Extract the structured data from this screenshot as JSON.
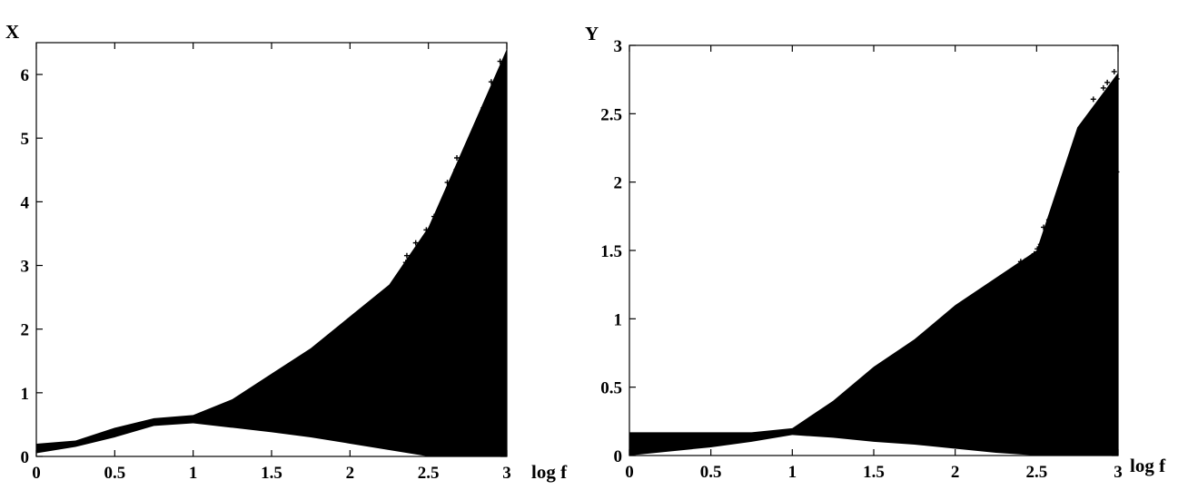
{
  "chart_data": [
    {
      "type": "scatter",
      "title": "",
      "xlabel": "log f",
      "ylabel": "X",
      "xlim": [
        0,
        3
      ],
      "ylim": [
        0,
        6.5
      ],
      "xticks": [
        "0",
        "0.5",
        "1",
        "1.5",
        "2",
        "2.5",
        "3"
      ],
      "yticks": [
        "0",
        "1",
        "2",
        "3",
        "4",
        "5",
        "6"
      ],
      "grid": false,
      "marker_color": "#000000",
      "marker_symbol": "+",
      "series": [
        {
          "x": [
            0.0,
            0.25,
            0.5,
            0.75,
            1.0,
            1.25,
            1.5,
            1.75,
            2.0,
            2.25,
            2.5,
            2.75,
            3.0
          ],
          "ymin": [
            0.05,
            0.15,
            0.3,
            0.48,
            0.52,
            0.45,
            0.38,
            0.3,
            0.2,
            0.1,
            0.0,
            0.0,
            0.0
          ],
          "ymax": [
            0.2,
            0.25,
            0.45,
            0.6,
            0.65,
            0.9,
            1.3,
            1.7,
            2.2,
            2.7,
            3.6,
            5.0,
            6.4
          ]
        }
      ]
    },
    {
      "type": "scatter",
      "title": "",
      "xlabel": "log f",
      "ylabel": "Y",
      "xlim": [
        0,
        3
      ],
      "ylim": [
        0,
        3
      ],
      "xticks": [
        "0",
        "0.5",
        "1",
        "1.5",
        "2",
        "2.5",
        "3"
      ],
      "yticks": [
        "0",
        "0.5",
        "1",
        "1.5",
        "2",
        "2.5",
        "3"
      ],
      "grid": false,
      "marker_color": "#000000",
      "marker_symbol": "+",
      "series": [
        {
          "x": [
            0.0,
            0.25,
            0.5,
            0.75,
            1.0,
            1.25,
            1.5,
            1.75,
            2.0,
            2.25,
            2.5,
            2.75,
            3.0
          ],
          "ymin": [
            0.0,
            0.03,
            0.06,
            0.1,
            0.15,
            0.13,
            0.1,
            0.08,
            0.05,
            0.02,
            0.0,
            0.0,
            0.0
          ],
          "ymax": [
            0.17,
            0.17,
            0.17,
            0.17,
            0.2,
            0.4,
            0.65,
            0.85,
            1.1,
            1.3,
            1.5,
            2.4,
            2.8
          ]
        }
      ]
    }
  ]
}
